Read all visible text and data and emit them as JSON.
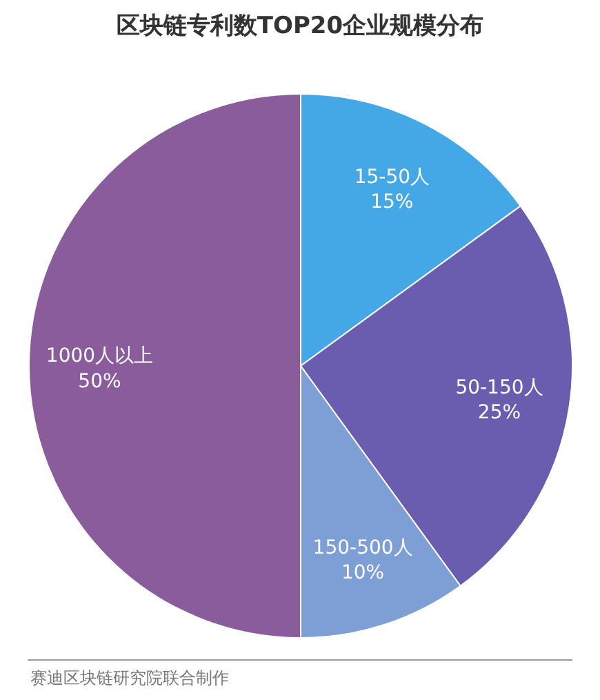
{
  "chart_data": {
    "type": "pie",
    "title": "区块链专利数TOP20企业规模分布",
    "categories": [
      "15-50人",
      "50-150人",
      "150-500人",
      "1000人以上"
    ],
    "values": [
      15,
      25,
      10,
      50
    ],
    "value_labels": [
      "15%",
      "25%",
      "10%",
      "50%"
    ],
    "colors": [
      "#45a8e6",
      "#6a5cae",
      "#7d9fd6",
      "#8b5c9c"
    ],
    "annotations": [
      "赛迪区块链研究院联合制作"
    ]
  }
}
